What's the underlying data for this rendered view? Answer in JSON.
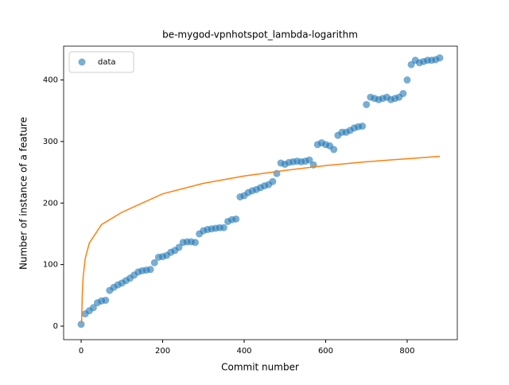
{
  "chart_data": {
    "type": "scatter",
    "title": "be-mygod-vpnhotspot_lambda-logarithm",
    "xlabel": "Commit number",
    "ylabel": "Number of instance of a feature",
    "xlim": [
      -43,
      923
    ],
    "ylim": [
      -22,
      455
    ],
    "xticks": [
      0,
      200,
      400,
      600,
      800
    ],
    "yticks": [
      0,
      100,
      200,
      300,
      400
    ],
    "legend": "upper left",
    "series": [
      {
        "name": "data",
        "color": "#1f77b4",
        "x": [
          0,
          10,
          20,
          30,
          40,
          50,
          60,
          70,
          80,
          90,
          100,
          110,
          120,
          130,
          140,
          150,
          160,
          170,
          180,
          190,
          200,
          210,
          220,
          230,
          240,
          250,
          260,
          270,
          280,
          290,
          300,
          310,
          320,
          330,
          340,
          350,
          360,
          370,
          380,
          390,
          400,
          410,
          420,
          430,
          440,
          450,
          460,
          470,
          480,
          490,
          500,
          510,
          520,
          530,
          540,
          550,
          560,
          570,
          580,
          590,
          600,
          610,
          620,
          630,
          640,
          650,
          660,
          670,
          680,
          690,
          700,
          710,
          720,
          730,
          740,
          750,
          760,
          770,
          780,
          790,
          800,
          810,
          820,
          830,
          840,
          850,
          860,
          870,
          880
        ],
        "values": [
          3,
          20,
          25,
          30,
          38,
          41,
          42,
          58,
          63,
          67,
          70,
          74,
          78,
          83,
          88,
          90,
          91,
          92,
          103,
          112,
          113,
          115,
          120,
          123,
          128,
          136,
          137,
          137,
          136,
          150,
          155,
          157,
          158,
          159,
          160,
          160,
          170,
          173,
          174,
          210,
          212,
          217,
          220,
          222,
          225,
          228,
          230,
          235,
          248,
          265,
          263,
          266,
          267,
          268,
          267,
          268,
          270,
          262,
          295,
          298,
          295,
          293,
          287,
          310,
          315,
          315,
          318,
          322,
          324,
          325,
          360,
          372,
          370,
          368,
          370,
          372,
          368,
          370,
          372,
          378,
          400,
          425,
          432,
          428,
          430,
          432,
          432,
          433,
          436
        ]
      },
      {
        "type": "line",
        "color": "#ff7f0e",
        "x": [
          1,
          3,
          5,
          10,
          20,
          50,
          100,
          200,
          300,
          400,
          500,
          600,
          700,
          800,
          880
        ],
        "values": [
          5,
          55,
          80,
          110,
          135,
          165,
          185,
          215,
          232,
          244,
          253,
          261,
          267,
          272,
          276
        ]
      }
    ]
  }
}
